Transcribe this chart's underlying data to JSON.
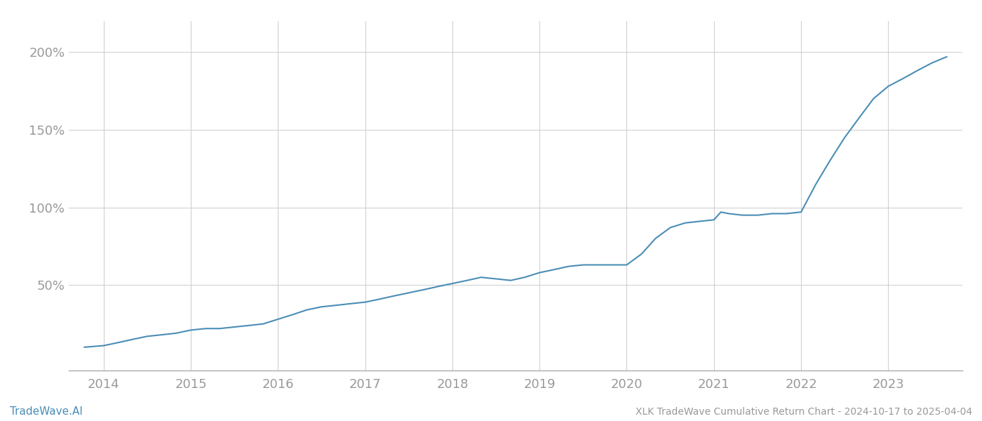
{
  "title": "XLK TradeWave Cumulative Return Chart - 2024-10-17 to 2025-04-04",
  "watermark": "TradeWave.AI",
  "line_color": "#4a8db5",
  "background_color": "#ffffff",
  "grid_color": "#cccccc",
  "text_color": "#999999",
  "x_labels": [
    "2014",
    "2015",
    "2016",
    "2017",
    "2018",
    "2019",
    "2020",
    "2021",
    "2022",
    "2023"
  ],
  "y_ticks": [
    50,
    100,
    150,
    200
  ],
  "y_tick_labels": [
    "50%",
    "100%",
    "150%",
    "200%"
  ],
  "xlim": [
    2013.6,
    2023.85
  ],
  "ylim": [
    -5,
    220
  ],
  "data_x": [
    2013.78,
    2014.0,
    2014.17,
    2014.33,
    2014.5,
    2014.67,
    2014.83,
    2015.0,
    2015.17,
    2015.33,
    2015.5,
    2015.67,
    2015.83,
    2016.0,
    2016.17,
    2016.33,
    2016.5,
    2016.67,
    2016.83,
    2017.0,
    2017.17,
    2017.33,
    2017.5,
    2017.67,
    2017.83,
    2018.0,
    2018.17,
    2018.33,
    2018.5,
    2018.67,
    2018.83,
    2019.0,
    2019.17,
    2019.33,
    2019.5,
    2019.67,
    2019.83,
    2020.0,
    2020.17,
    2020.33,
    2020.5,
    2020.67,
    2020.83,
    2021.0,
    2021.08,
    2021.17,
    2021.33,
    2021.5,
    2021.67,
    2021.83,
    2022.0,
    2022.17,
    2022.33,
    2022.5,
    2022.67,
    2022.83,
    2023.0,
    2023.17,
    2023.33,
    2023.5,
    2023.67
  ],
  "data_y": [
    10,
    11,
    13,
    15,
    17,
    18,
    19,
    21,
    22,
    22,
    23,
    24,
    25,
    28,
    31,
    34,
    36,
    37,
    38,
    39,
    41,
    43,
    45,
    47,
    49,
    51,
    53,
    55,
    54,
    53,
    55,
    58,
    60,
    62,
    63,
    63,
    63,
    63,
    70,
    80,
    87,
    90,
    91,
    92,
    97,
    96,
    95,
    95,
    96,
    96,
    97,
    115,
    130,
    145,
    158,
    170,
    178,
    183,
    188,
    193,
    197
  ]
}
